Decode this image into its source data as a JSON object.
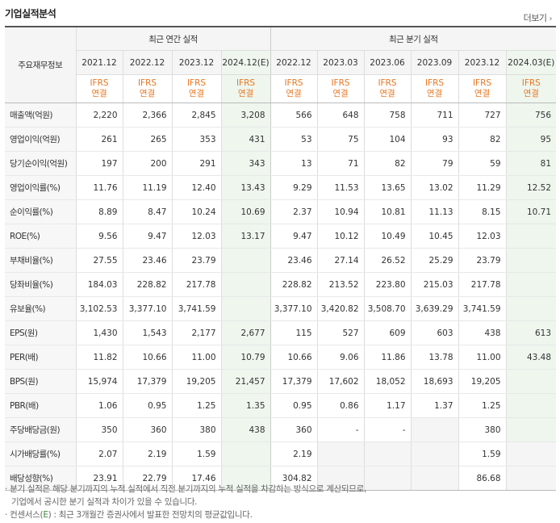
{
  "title": "기업실적분석",
  "more_label": "더보기",
  "header": {
    "row_label": "주요재무정보",
    "annual_group": "최근 연간 실적",
    "quarter_group": "최근 분기 실적",
    "ifrs_line1": "IFRS",
    "ifrs_line2": "연결"
  },
  "annual_periods": [
    "2021.12",
    "2022.12",
    "2023.12",
    "2024.12(E)"
  ],
  "quarter_periods": [
    "2022.12",
    "2023.03",
    "2023.06",
    "2023.09",
    "2023.12",
    "2024.03(E)"
  ],
  "rows": [
    {
      "label": "매출액(억원)",
      "values": [
        "2,220",
        "2,366",
        "2,845",
        "3,208",
        "566",
        "648",
        "758",
        "711",
        "727",
        "756"
      ]
    },
    {
      "label": "영업이익(억원)",
      "values": [
        "261",
        "265",
        "353",
        "431",
        "53",
        "75",
        "104",
        "93",
        "82",
        "95"
      ]
    },
    {
      "label": "당기순이익(억원)",
      "values": [
        "197",
        "200",
        "291",
        "343",
        "13",
        "71",
        "82",
        "79",
        "59",
        "81"
      ]
    },
    {
      "label": "영업이익률(%)",
      "values": [
        "11.76",
        "11.19",
        "12.40",
        "13.43",
        "9.29",
        "11.53",
        "13.65",
        "13.02",
        "11.29",
        "12.52"
      ]
    },
    {
      "label": "순이익률(%)",
      "values": [
        "8.89",
        "8.47",
        "10.24",
        "10.69",
        "2.37",
        "10.94",
        "10.81",
        "11.13",
        "8.15",
        "10.71"
      ]
    },
    {
      "label": "ROE(%)",
      "values": [
        "9.56",
        "9.47",
        "12.03",
        "13.17",
        "9.47",
        "10.12",
        "10.49",
        "10.45",
        "12.03",
        ""
      ]
    },
    {
      "label": "부채비율(%)",
      "values": [
        "27.55",
        "23.46",
        "23.79",
        "",
        "23.46",
        "27.14",
        "26.52",
        "25.29",
        "23.79",
        ""
      ]
    },
    {
      "label": "당좌비율(%)",
      "values": [
        "184.03",
        "228.82",
        "217.78",
        "",
        "228.82",
        "213.52",
        "223.80",
        "215.03",
        "217.78",
        ""
      ]
    },
    {
      "label": "유보율(%)",
      "values": [
        "3,102.53",
        "3,377.10",
        "3,741.59",
        "",
        "3,377.10",
        "3,420.82",
        "3,508.70",
        "3,639.29",
        "3,741.59",
        ""
      ]
    },
    {
      "label": "EPS(원)",
      "values": [
        "1,430",
        "1,543",
        "2,177",
        "2,677",
        "115",
        "527",
        "609",
        "603",
        "438",
        "613"
      ]
    },
    {
      "label": "PER(배)",
      "values": [
        "11.82",
        "10.66",
        "11.00",
        "10.79",
        "10.66",
        "9.06",
        "11.86",
        "13.78",
        "11.00",
        "43.48"
      ]
    },
    {
      "label": "BPS(원)",
      "values": [
        "15,974",
        "17,379",
        "19,205",
        "21,457",
        "17,379",
        "17,602",
        "18,052",
        "18,693",
        "19,205",
        ""
      ]
    },
    {
      "label": "PBR(배)",
      "values": [
        "1.06",
        "0.95",
        "1.25",
        "1.35",
        "0.95",
        "0.86",
        "1.17",
        "1.37",
        "1.25",
        ""
      ]
    },
    {
      "label": "주당배당금(원)",
      "values": [
        "350",
        "360",
        "380",
        "438",
        "360",
        "-",
        "-",
        "",
        "380",
        ""
      ]
    },
    {
      "label": "시가배당률(%)",
      "values": [
        "2.07",
        "2.19",
        "1.59",
        "",
        "2.19",
        "",
        "",
        "",
        "1.59",
        ""
      ]
    },
    {
      "label": "배당성향(%)",
      "values": [
        "23.91",
        "22.79",
        "17.46",
        "",
        "304.82",
        "",
        "",
        "",
        "86.68",
        ""
      ]
    }
  ],
  "notes": {
    "line1": "분기 실적은 해당 분기까지의 누적 실적에서 직전 분기까지의 누적 실적을 차감하는 방식으로 계산되므로,",
    "line2": "기업에서 공시한 분기 실적과 차이가 있을 수 있습니다.",
    "line3_prefix": "컨센서스(",
    "line3_e": "E",
    "line3_suffix": ") : 최근 3개월간 증권사에서 발표한 전망치의 평균값입니다."
  }
}
